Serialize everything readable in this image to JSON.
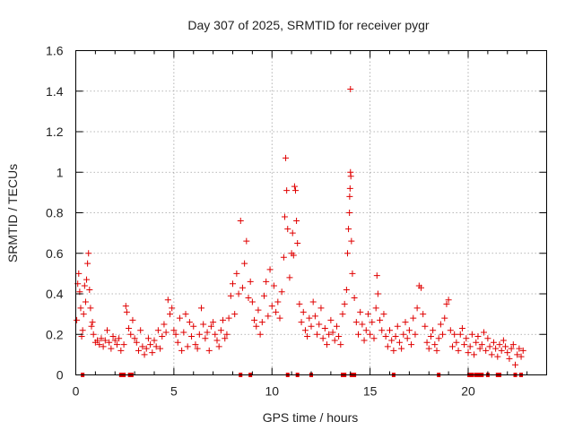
{
  "chart_data": {
    "type": "scatter",
    "title": "Day 307 of 2025, SRMTID for receiver pygr",
    "xlabel": "GPS time / hours",
    "ylabel": "SRMTID / TECUs",
    "xlim": [
      0,
      24
    ],
    "ylim": [
      0,
      1.6
    ],
    "xticks": [
      0,
      5,
      10,
      15,
      20
    ],
    "yticks": [
      0,
      0.2,
      0.4,
      0.6,
      0.8,
      1,
      1.2,
      1.4,
      1.6
    ],
    "xtick_labels": [
      "0",
      "5",
      "10",
      "15",
      "20"
    ],
    "ytick_labels": [
      "0",
      "0.2",
      "0.4",
      "0.6",
      "0.8",
      "1",
      "1.2",
      "1.4",
      "1.6"
    ],
    "grid": true,
    "marker": "+",
    "color": "#e00000",
    "series": [
      {
        "name": "SRMTID",
        "points": [
          [
            0.05,
            0.27
          ],
          [
            0.1,
            0.45
          ],
          [
            0.15,
            0.5
          ],
          [
            0.2,
            0.41
          ],
          [
            0.25,
            0.33
          ],
          [
            0.3,
            0.19
          ],
          [
            0.35,
            0.22
          ],
          [
            0.4,
            0.3
          ],
          [
            0.45,
            0.44
          ],
          [
            0.5,
            0.36
          ],
          [
            0.55,
            0.47
          ],
          [
            0.6,
            0.55
          ],
          [
            0.65,
            0.6
          ],
          [
            0.7,
            0.42
          ],
          [
            0.75,
            0.33
          ],
          [
            0.8,
            0.24
          ],
          [
            0.85,
            0.26
          ],
          [
            0.9,
            0.2
          ],
          [
            1.0,
            0.16
          ],
          [
            1.1,
            0.17
          ],
          [
            1.2,
            0.15
          ],
          [
            1.3,
            0.18
          ],
          [
            1.4,
            0.14
          ],
          [
            1.5,
            0.17
          ],
          [
            1.6,
            0.22
          ],
          [
            1.7,
            0.16
          ],
          [
            1.8,
            0.13
          ],
          [
            1.9,
            0.19
          ],
          [
            2.0,
            0.17
          ],
          [
            2.1,
            0.15
          ],
          [
            2.2,
            0.18
          ],
          [
            2.3,
            0.12
          ],
          [
            2.45,
            0.15
          ],
          [
            2.55,
            0.34
          ],
          [
            2.6,
            0.31
          ],
          [
            2.7,
            0.23
          ],
          [
            2.8,
            0.2
          ],
          [
            2.9,
            0.27
          ],
          [
            3.0,
            0.18
          ],
          [
            3.1,
            0.16
          ],
          [
            3.2,
            0.12
          ],
          [
            3.3,
            0.22
          ],
          [
            3.4,
            0.14
          ],
          [
            3.5,
            0.1
          ],
          [
            3.6,
            0.13
          ],
          [
            3.7,
            0.18
          ],
          [
            3.8,
            0.15
          ],
          [
            3.9,
            0.11
          ],
          [
            4.0,
            0.17
          ],
          [
            4.1,
            0.14
          ],
          [
            4.2,
            0.22
          ],
          [
            4.3,
            0.13
          ],
          [
            4.4,
            0.19
          ],
          [
            4.5,
            0.25
          ],
          [
            4.6,
            0.21
          ],
          [
            4.7,
            0.37
          ],
          [
            4.8,
            0.3
          ],
          [
            4.9,
            0.33
          ],
          [
            5.0,
            0.22
          ],
          [
            5.1,
            0.2
          ],
          [
            5.2,
            0.16
          ],
          [
            5.3,
            0.28
          ],
          [
            5.4,
            0.12
          ],
          [
            5.5,
            0.21
          ],
          [
            5.6,
            0.3
          ],
          [
            5.7,
            0.14
          ],
          [
            5.8,
            0.26
          ],
          [
            5.9,
            0.19
          ],
          [
            6.0,
            0.24
          ],
          [
            6.1,
            0.15
          ],
          [
            6.2,
            0.13
          ],
          [
            6.3,
            0.2
          ],
          [
            6.4,
            0.33
          ],
          [
            6.5,
            0.25
          ],
          [
            6.6,
            0.18
          ],
          [
            6.7,
            0.21
          ],
          [
            6.8,
            0.12
          ],
          [
            6.9,
            0.24
          ],
          [
            7.0,
            0.26
          ],
          [
            7.1,
            0.2
          ],
          [
            7.2,
            0.17
          ],
          [
            7.3,
            0.14
          ],
          [
            7.4,
            0.22
          ],
          [
            7.5,
            0.27
          ],
          [
            7.6,
            0.18
          ],
          [
            7.7,
            0.2
          ],
          [
            7.8,
            0.28
          ],
          [
            7.9,
            0.39
          ],
          [
            8.0,
            0.45
          ],
          [
            8.1,
            0.3
          ],
          [
            8.2,
            0.5
          ],
          [
            8.3,
            0.4
          ],
          [
            8.4,
            0.76
          ],
          [
            8.5,
            0.43
          ],
          [
            8.6,
            0.55
          ],
          [
            8.7,
            0.66
          ],
          [
            8.8,
            0.38
          ],
          [
            8.9,
            0.46
          ],
          [
            9.0,
            0.36
          ],
          [
            9.1,
            0.27
          ],
          [
            9.2,
            0.24
          ],
          [
            9.3,
            0.32
          ],
          [
            9.4,
            0.2
          ],
          [
            9.5,
            0.26
          ],
          [
            9.6,
            0.39
          ],
          [
            9.7,
            0.46
          ],
          [
            9.8,
            0.29
          ],
          [
            9.9,
            0.52
          ],
          [
            10.0,
            0.34
          ],
          [
            10.1,
            0.44
          ],
          [
            10.2,
            0.31
          ],
          [
            10.3,
            0.36
          ],
          [
            10.4,
            0.28
          ],
          [
            10.5,
            0.41
          ],
          [
            10.6,
            0.58
          ],
          [
            10.65,
            0.78
          ],
          [
            10.7,
            1.07
          ],
          [
            10.75,
            0.91
          ],
          [
            10.8,
            0.72
          ],
          [
            10.9,
            0.48
          ],
          [
            11.0,
            0.6
          ],
          [
            11.05,
            0.7
          ],
          [
            11.1,
            0.59
          ],
          [
            11.15,
            0.93
          ],
          [
            11.2,
            0.91
          ],
          [
            11.25,
            0.76
          ],
          [
            11.3,
            0.65
          ],
          [
            11.4,
            0.35
          ],
          [
            11.5,
            0.26
          ],
          [
            11.6,
            0.31
          ],
          [
            11.7,
            0.22
          ],
          [
            11.8,
            0.19
          ],
          [
            11.9,
            0.28
          ],
          [
            12.0,
            0.24
          ],
          [
            12.1,
            0.36
          ],
          [
            12.2,
            0.29
          ],
          [
            12.3,
            0.2
          ],
          [
            12.4,
            0.25
          ],
          [
            12.5,
            0.33
          ],
          [
            12.6,
            0.18
          ],
          [
            12.7,
            0.23
          ],
          [
            12.8,
            0.15
          ],
          [
            12.9,
            0.2
          ],
          [
            13.0,
            0.27
          ],
          [
            13.1,
            0.21
          ],
          [
            13.2,
            0.17
          ],
          [
            13.3,
            0.24
          ],
          [
            13.4,
            0.19
          ],
          [
            13.5,
            0.15
          ],
          [
            13.6,
            0.3
          ],
          [
            13.7,
            0.35
          ],
          [
            13.8,
            0.42
          ],
          [
            13.85,
            0.6
          ],
          [
            13.9,
            0.72
          ],
          [
            13.95,
            0.8
          ],
          [
            14.0,
            1.41
          ],
          [
            14.0,
            1.0
          ],
          [
            14.02,
            0.98
          ],
          [
            13.98,
            0.92
          ],
          [
            13.96,
            0.88
          ],
          [
            14.05,
            0.66
          ],
          [
            14.1,
            0.5
          ],
          [
            14.2,
            0.38
          ],
          [
            14.3,
            0.26
          ],
          [
            14.4,
            0.2
          ],
          [
            14.5,
            0.31
          ],
          [
            14.6,
            0.25
          ],
          [
            14.7,
            0.17
          ],
          [
            14.8,
            0.22
          ],
          [
            14.9,
            0.3
          ],
          [
            15.0,
            0.2
          ],
          [
            15.1,
            0.26
          ],
          [
            15.2,
            0.18
          ],
          [
            15.3,
            0.33
          ],
          [
            15.35,
            0.49
          ],
          [
            15.4,
            0.4
          ],
          [
            15.5,
            0.27
          ],
          [
            15.6,
            0.22
          ],
          [
            15.7,
            0.3
          ],
          [
            15.8,
            0.19
          ],
          [
            15.9,
            0.14
          ],
          [
            16.0,
            0.22
          ],
          [
            16.1,
            0.17
          ],
          [
            16.2,
            0.12
          ],
          [
            16.3,
            0.19
          ],
          [
            16.4,
            0.24
          ],
          [
            16.5,
            0.16
          ],
          [
            16.6,
            0.13
          ],
          [
            16.7,
            0.2
          ],
          [
            16.8,
            0.26
          ],
          [
            16.9,
            0.18
          ],
          [
            17.0,
            0.22
          ],
          [
            17.1,
            0.15
          ],
          [
            17.2,
            0.28
          ],
          [
            17.3,
            0.2
          ],
          [
            17.4,
            0.33
          ],
          [
            17.5,
            0.44
          ],
          [
            17.6,
            0.43
          ],
          [
            17.7,
            0.3
          ],
          [
            17.8,
            0.24
          ],
          [
            17.9,
            0.16
          ],
          [
            18.0,
            0.13
          ],
          [
            18.1,
            0.19
          ],
          [
            18.2,
            0.22
          ],
          [
            18.3,
            0.15
          ],
          [
            18.4,
            0.12
          ],
          [
            18.5,
            0.18
          ],
          [
            18.6,
            0.25
          ],
          [
            18.7,
            0.2
          ],
          [
            18.8,
            0.28
          ],
          [
            18.9,
            0.35
          ],
          [
            19.0,
            0.37
          ],
          [
            19.1,
            0.22
          ],
          [
            19.2,
            0.14
          ],
          [
            19.3,
            0.2
          ],
          [
            19.4,
            0.16
          ],
          [
            19.5,
            0.12
          ],
          [
            19.6,
            0.2
          ],
          [
            19.7,
            0.23
          ],
          [
            19.8,
            0.15
          ],
          [
            19.9,
            0.18
          ],
          [
            20.0,
            0.11
          ],
          [
            20.1,
            0.14
          ],
          [
            20.2,
            0.2
          ],
          [
            20.3,
            0.1
          ],
          [
            20.4,
            0.16
          ],
          [
            20.5,
            0.19
          ],
          [
            20.6,
            0.13
          ],
          [
            20.7,
            0.15
          ],
          [
            20.8,
            0.21
          ],
          [
            20.9,
            0.12
          ],
          [
            21.0,
            0.18
          ],
          [
            21.1,
            0.14
          ],
          [
            21.2,
            0.1
          ],
          [
            21.3,
            0.16
          ],
          [
            21.4,
            0.13
          ],
          [
            21.5,
            0.09
          ],
          [
            21.6,
            0.15
          ],
          [
            21.7,
            0.12
          ],
          [
            21.8,
            0.17
          ],
          [
            21.9,
            0.14
          ],
          [
            22.0,
            0.11
          ],
          [
            22.1,
            0.08
          ],
          [
            22.2,
            0.13
          ],
          [
            22.3,
            0.15
          ],
          [
            22.4,
            0.05
          ],
          [
            22.5,
            0.1
          ],
          [
            22.6,
            0.13
          ],
          [
            22.7,
            0.09
          ],
          [
            22.8,
            0.12
          ]
        ]
      }
    ],
    "zero_marks": [
      0.35,
      2.3,
      2.45,
      2.75,
      2.85,
      8.4,
      8.9,
      10.8,
      11.3,
      12.0,
      13.6,
      13.7,
      14.05,
      14.2,
      16.2,
      18.5,
      20.05,
      20.2,
      20.4,
      20.55,
      20.7,
      21.0,
      21.5,
      21.6,
      22.4,
      22.7
    ]
  }
}
